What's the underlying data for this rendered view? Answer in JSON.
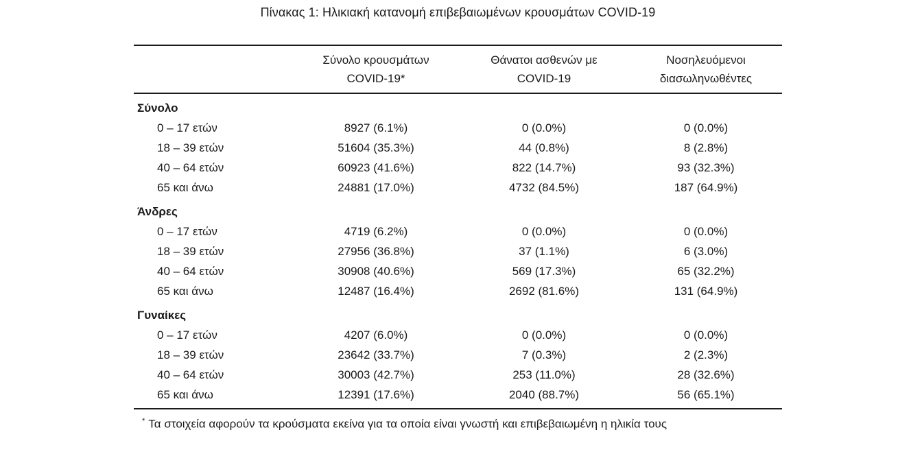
{
  "title": "Πίνακας 1: Ηλικιακή κατανομή επιβεβαιωμένων κρουσμάτων COVID-19",
  "colors": {
    "background": "#ffffff",
    "text": "#1a1a1a",
    "rule": "#1c1c1c"
  },
  "table": {
    "columns": [
      {
        "line1": "Σύνολο κρουσμάτων",
        "line2": "COVID-19*"
      },
      {
        "line1": "Θάνατοι ασθενών με",
        "line2": "COVID-19"
      },
      {
        "line1": "Νοσηλευόμενοι",
        "line2": "διασωληνωθέντες"
      }
    ],
    "sections": [
      {
        "name": "Σύνολο",
        "rows": [
          {
            "label": "0 – 17 ετών",
            "values": [
              "8927 (6.1%)",
              "0 (0.0%)",
              "0 (0.0%)"
            ]
          },
          {
            "label": "18 – 39 ετών",
            "values": [
              "51604 (35.3%)",
              "44 (0.8%)",
              "8 (2.8%)"
            ]
          },
          {
            "label": "40 – 64 ετών",
            "values": [
              "60923 (41.6%)",
              "822 (14.7%)",
              "93 (32.3%)"
            ]
          },
          {
            "label": "65 και άνω",
            "values": [
              "24881 (17.0%)",
              "4732 (84.5%)",
              "187 (64.9%)"
            ]
          }
        ]
      },
      {
        "name": "Άνδρες",
        "rows": [
          {
            "label": "0 – 17 ετών",
            "values": [
              "4719 (6.2%)",
              "0 (0.0%)",
              "0 (0.0%)"
            ]
          },
          {
            "label": "18 – 39 ετών",
            "values": [
              "27956 (36.8%)",
              "37 (1.1%)",
              "6 (3.0%)"
            ]
          },
          {
            "label": "40 – 64 ετών",
            "values": [
              "30908 (40.6%)",
              "569 (17.3%)",
              "65 (32.2%)"
            ]
          },
          {
            "label": "65 και άνω",
            "values": [
              "12487 (16.4%)",
              "2692 (81.6%)",
              "131 (64.9%)"
            ]
          }
        ]
      },
      {
        "name": "Γυναίκες",
        "rows": [
          {
            "label": "0 – 17 ετών",
            "values": [
              "4207 (6.0%)",
              "0 (0.0%)",
              "0 (0.0%)"
            ]
          },
          {
            "label": "18 – 39 ετών",
            "values": [
              "23642 (33.7%)",
              "7 (0.3%)",
              "2 (2.3%)"
            ]
          },
          {
            "label": "40 – 64 ετών",
            "values": [
              "30003 (42.7%)",
              "253 (11.0%)",
              "28 (32.6%)"
            ]
          },
          {
            "label": "65 και άνω",
            "values": [
              "12391 (17.6%)",
              "2040 (88.7%)",
              "56 (65.1%)"
            ]
          }
        ]
      }
    ],
    "footnote": {
      "marker": "*",
      "text": "Τα στοιχεία αφορούν τα κρούσματα εκείνα για τα οποία είναι γνωστή και επιβεβαιωμένη η ηλικία τους"
    }
  }
}
